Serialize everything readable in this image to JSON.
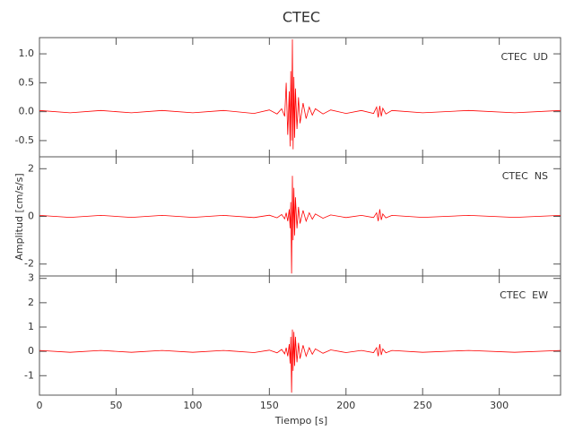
{
  "chart_data": [
    {
      "type": "line",
      "title": "CTEC",
      "x": [
        0,
        20,
        40,
        60,
        80,
        100,
        120,
        140,
        150,
        155,
        158,
        160,
        161,
        162,
        163,
        163.5,
        164,
        164.5,
        165,
        165.5,
        166,
        166.5,
        167,
        168,
        169,
        170,
        172,
        174,
        176,
        178,
        180,
        185,
        190,
        200,
        210,
        218,
        220,
        221,
        222,
        223,
        224,
        226,
        230,
        250,
        280,
        310,
        340
      ],
      "series": [
        {
          "name": "CTEC  UD",
          "color": "#ff0000",
          "values": [
            0.02,
            -0.02,
            0.02,
            -0.02,
            0.02,
            -0.02,
            0.02,
            -0.03,
            0.03,
            -0.04,
            0.05,
            -0.08,
            0.5,
            -0.4,
            0.35,
            -0.6,
            0.7,
            -0.5,
            1.25,
            -0.65,
            0.6,
            -0.45,
            0.4,
            -0.3,
            0.25,
            -0.2,
            0.15,
            -0.12,
            0.08,
            -0.06,
            0.05,
            -0.04,
            0.03,
            -0.03,
            0.02,
            -0.03,
            0.08,
            -0.1,
            0.1,
            -0.08,
            0.06,
            -0.04,
            0.02,
            -0.02,
            0.02,
            -0.02,
            0.02
          ]
        }
      ],
      "xlim": [
        0,
        340
      ],
      "xticks": [
        0,
        50,
        100,
        150,
        200,
        250,
        300
      ],
      "ylim": [
        -0.78,
        1.28
      ],
      "yticks": [
        -0.5,
        {
          "value": 0,
          "label": "0.0"
        },
        0.5,
        {
          "value": 1,
          "label": "1.0"
        }
      ]
    },
    {
      "type": "line",
      "ylabel": "Amplitud [cm/s/s]",
      "x": [
        0,
        20,
        40,
        60,
        80,
        100,
        120,
        140,
        150,
        155,
        158,
        160,
        161,
        162,
        163,
        163.5,
        164,
        164.5,
        165,
        165.5,
        166,
        166.5,
        167,
        168,
        169,
        170,
        172,
        174,
        176,
        178,
        180,
        185,
        190,
        200,
        210,
        218,
        220,
        221,
        222,
        223,
        224,
        226,
        230,
        250,
        280,
        310,
        340
      ],
      "series": [
        {
          "name": "CTEC  NS",
          "color": "#ff0000",
          "values": [
            0.04,
            -0.04,
            0.04,
            -0.04,
            0.04,
            -0.04,
            0.04,
            -0.05,
            0.05,
            -0.06,
            0.08,
            -0.1,
            0.15,
            -0.2,
            0.3,
            -0.5,
            0.6,
            -2.4,
            1.7,
            -1.0,
            1.2,
            -0.8,
            0.8,
            -0.5,
            0.4,
            -0.3,
            0.25,
            -0.2,
            0.15,
            -0.12,
            0.1,
            -0.08,
            0.06,
            -0.05,
            0.04,
            -0.05,
            0.15,
            -0.2,
            0.3,
            -0.15,
            0.1,
            -0.06,
            0.04,
            -0.04,
            0.04,
            -0.04,
            0.04
          ]
        }
      ],
      "xlim": [
        0,
        340
      ],
      "xticks": [
        0,
        50,
        100,
        150,
        200,
        250,
        300
      ],
      "ylim": [
        -2.5,
        2.5
      ],
      "yticks": [
        -2,
        0,
        2
      ]
    },
    {
      "type": "line",
      "xlabel": "Tiempo [s]",
      "x": [
        0,
        20,
        40,
        60,
        80,
        100,
        120,
        140,
        150,
        155,
        158,
        160,
        161,
        162,
        163,
        163.5,
        164,
        164.5,
        165,
        165.5,
        166,
        166.5,
        167,
        168,
        169,
        170,
        172,
        174,
        176,
        178,
        180,
        185,
        190,
        200,
        210,
        218,
        220,
        221,
        222,
        223,
        224,
        226,
        230,
        250,
        280,
        310,
        340
      ],
      "series": [
        {
          "name": "CTEC  EW",
          "color": "#ff0000",
          "values": [
            0.04,
            -0.04,
            0.04,
            -0.04,
            0.04,
            -0.04,
            0.04,
            -0.05,
            0.05,
            -0.06,
            0.08,
            -0.1,
            0.15,
            -0.2,
            0.3,
            -0.5,
            0.6,
            -1.7,
            0.9,
            -0.8,
            0.8,
            -0.6,
            0.6,
            -0.45,
            0.35,
            -0.3,
            0.25,
            -0.2,
            0.15,
            -0.12,
            0.1,
            -0.08,
            0.06,
            -0.05,
            0.04,
            -0.05,
            0.15,
            -0.2,
            0.3,
            -0.15,
            0.1,
            -0.06,
            0.04,
            -0.04,
            0.04,
            -0.04,
            0.04
          ]
        }
      ],
      "xlim": [
        0,
        340
      ],
      "xticks": [
        0,
        50,
        100,
        150,
        200,
        250,
        300
      ],
      "ylim": [
        -1.8,
        3.1
      ],
      "yticks": [
        -1,
        0,
        1,
        2,
        3
      ]
    }
  ]
}
